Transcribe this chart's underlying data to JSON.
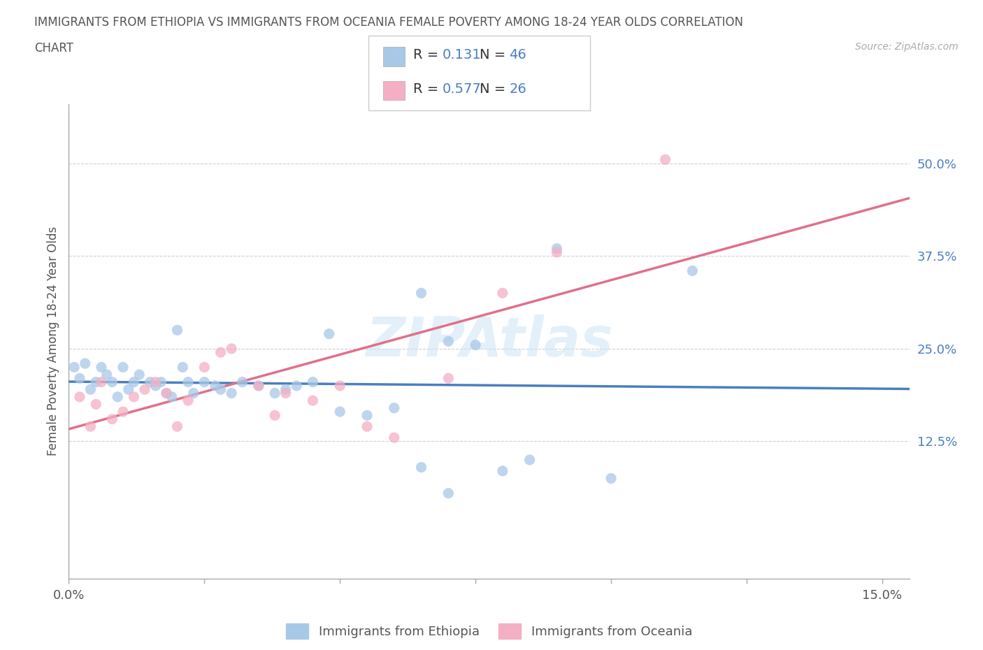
{
  "title_line1": "IMMIGRANTS FROM ETHIOPIA VS IMMIGRANTS FROM OCEANIA FEMALE POVERTY AMONG 18-24 YEAR OLDS CORRELATION",
  "title_line2": "CHART",
  "source": "Source: ZipAtlas.com",
  "ylabel": "Female Poverty Among 18-24 Year Olds",
  "xlim": [
    0.0,
    0.155
  ],
  "ylim": [
    -0.06,
    0.58
  ],
  "xtick_vals": [
    0.0,
    0.025,
    0.05,
    0.075,
    0.1,
    0.125,
    0.15
  ],
  "xticklabels_show": [
    "0.0%",
    "",
    "",
    "",
    "",
    "",
    "15.0%"
  ],
  "ytick_right_vals": [
    0.125,
    0.25,
    0.375,
    0.5
  ],
  "ytick_right_labels": [
    "12.5%",
    "25.0%",
    "37.5%",
    "50.0%"
  ],
  "ethiopia_color": "#a8c8e8",
  "oceania_color": "#f4afc4",
  "ethiopia_line_color": "#4a7fc0",
  "oceania_line_color": "#e0708a",
  "ethiopia_R": 0.131,
  "ethiopia_N": 46,
  "oceania_R": 0.577,
  "oceania_N": 26,
  "background_color": "#ffffff",
  "grid_color": "#d0d0d0",
  "title_color": "#555555",
  "axis_label_color": "#555555",
  "right_tick_color": "#4a7fc0",
  "legend_R_color": "#4a7fc0",
  "legend_text_color": "#333333",
  "watermark_color": "#cce4f5",
  "ethiopia_x": [
    0.001,
    0.002,
    0.003,
    0.004,
    0.005,
    0.006,
    0.007,
    0.008,
    0.009,
    0.01,
    0.011,
    0.012,
    0.013,
    0.015,
    0.016,
    0.017,
    0.018,
    0.019,
    0.02,
    0.021,
    0.022,
    0.023,
    0.025,
    0.027,
    0.028,
    0.03,
    0.032,
    0.035,
    0.038,
    0.04,
    0.042,
    0.045,
    0.048,
    0.05,
    0.055,
    0.06,
    0.065,
    0.07,
    0.075,
    0.08,
    0.085,
    0.09,
    0.1,
    0.115,
    0.065,
    0.07
  ],
  "ethiopia_y": [
    0.225,
    0.21,
    0.23,
    0.195,
    0.205,
    0.225,
    0.215,
    0.205,
    0.185,
    0.225,
    0.195,
    0.205,
    0.215,
    0.205,
    0.2,
    0.205,
    0.19,
    0.185,
    0.275,
    0.225,
    0.205,
    0.19,
    0.205,
    0.2,
    0.195,
    0.19,
    0.205,
    0.2,
    0.19,
    0.195,
    0.2,
    0.205,
    0.27,
    0.165,
    0.16,
    0.17,
    0.09,
    0.26,
    0.255,
    0.085,
    0.1,
    0.385,
    0.075,
    0.355,
    0.325,
    0.055
  ],
  "oceania_x": [
    0.002,
    0.004,
    0.005,
    0.006,
    0.008,
    0.01,
    0.012,
    0.014,
    0.016,
    0.018,
    0.02,
    0.022,
    0.025,
    0.028,
    0.03,
    0.035,
    0.038,
    0.04,
    0.045,
    0.05,
    0.055,
    0.06,
    0.07,
    0.08,
    0.09,
    0.11
  ],
  "oceania_y": [
    0.185,
    0.145,
    0.175,
    0.205,
    0.155,
    0.165,
    0.185,
    0.195,
    0.205,
    0.19,
    0.145,
    0.18,
    0.225,
    0.245,
    0.25,
    0.2,
    0.16,
    0.19,
    0.18,
    0.2,
    0.145,
    0.13,
    0.21,
    0.325,
    0.38,
    0.505
  ]
}
